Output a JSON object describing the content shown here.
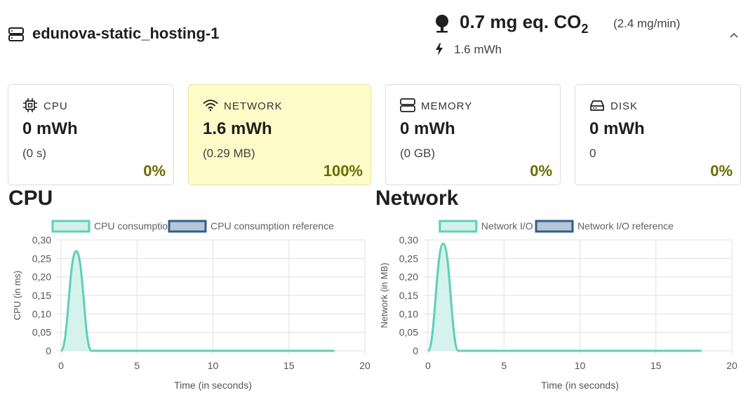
{
  "header": {
    "title": "edunova-static_hosting-1",
    "co2_value": "0.7 mg eq. CO",
    "co2_subscript": "2",
    "co2_rate": "(2.4 mg/min)",
    "energy": "1.6 mWh"
  },
  "cards": [
    {
      "label": "CPU",
      "value": "0 mWh",
      "sub": "(0 s)",
      "percent": "0%"
    },
    {
      "label": "NETWORK",
      "value": "1.6 mWh",
      "sub": "(0.29 MB)",
      "percent": "100%"
    },
    {
      "label": "MEMORY",
      "value": "0 mWh",
      "sub": "(0 GB)",
      "percent": "0%"
    },
    {
      "label": "DISK",
      "value": "0 mWh",
      "sub": "0",
      "percent": "0%"
    }
  ],
  "colors": {
    "accent": "#5fcfb8",
    "accent_fill": "#d2f1ea",
    "reference": "#2f5f8a",
    "reference_fill": "#b7c6d7",
    "highlight_card": "#fffbc8",
    "percent_text": "#6b6b00"
  },
  "chart_data": [
    {
      "type": "line",
      "title": "CPU",
      "xlabel": "Time (in seconds)",
      "ylabel": "CPU (in ms)",
      "xlim": [
        0,
        20
      ],
      "ylim": [
        0,
        0.3
      ],
      "xticks": [
        "0",
        "5",
        "10",
        "15",
        "20"
      ],
      "yticks": [
        "0",
        "0,05",
        "0,10",
        "0,15",
        "0,20",
        "0,25",
        "0,30"
      ],
      "legend": [
        "CPU consumption",
        "CPU consumption reference"
      ],
      "series": [
        {
          "name": "CPU consumption",
          "x": [
            0,
            1,
            2,
            18
          ],
          "values": [
            0,
            0.27,
            0,
            0
          ]
        },
        {
          "name": "CPU consumption reference",
          "x": [],
          "values": []
        }
      ]
    },
    {
      "type": "line",
      "title": "Network",
      "xlabel": "Time (in seconds)",
      "ylabel": "Network (in MB)",
      "xlim": [
        0,
        20
      ],
      "ylim": [
        0,
        0.3
      ],
      "xticks": [
        "0",
        "5",
        "10",
        "15",
        "20"
      ],
      "yticks": [
        "0",
        "0,05",
        "0,10",
        "0,15",
        "0,20",
        "0,25",
        "0,30"
      ],
      "legend": [
        "Network I/O",
        "Network I/O reference"
      ],
      "series": [
        {
          "name": "Network I/O",
          "x": [
            0,
            1,
            2,
            18
          ],
          "values": [
            0,
            0.29,
            0,
            0
          ]
        },
        {
          "name": "Network I/O reference",
          "x": [],
          "values": []
        }
      ]
    }
  ]
}
